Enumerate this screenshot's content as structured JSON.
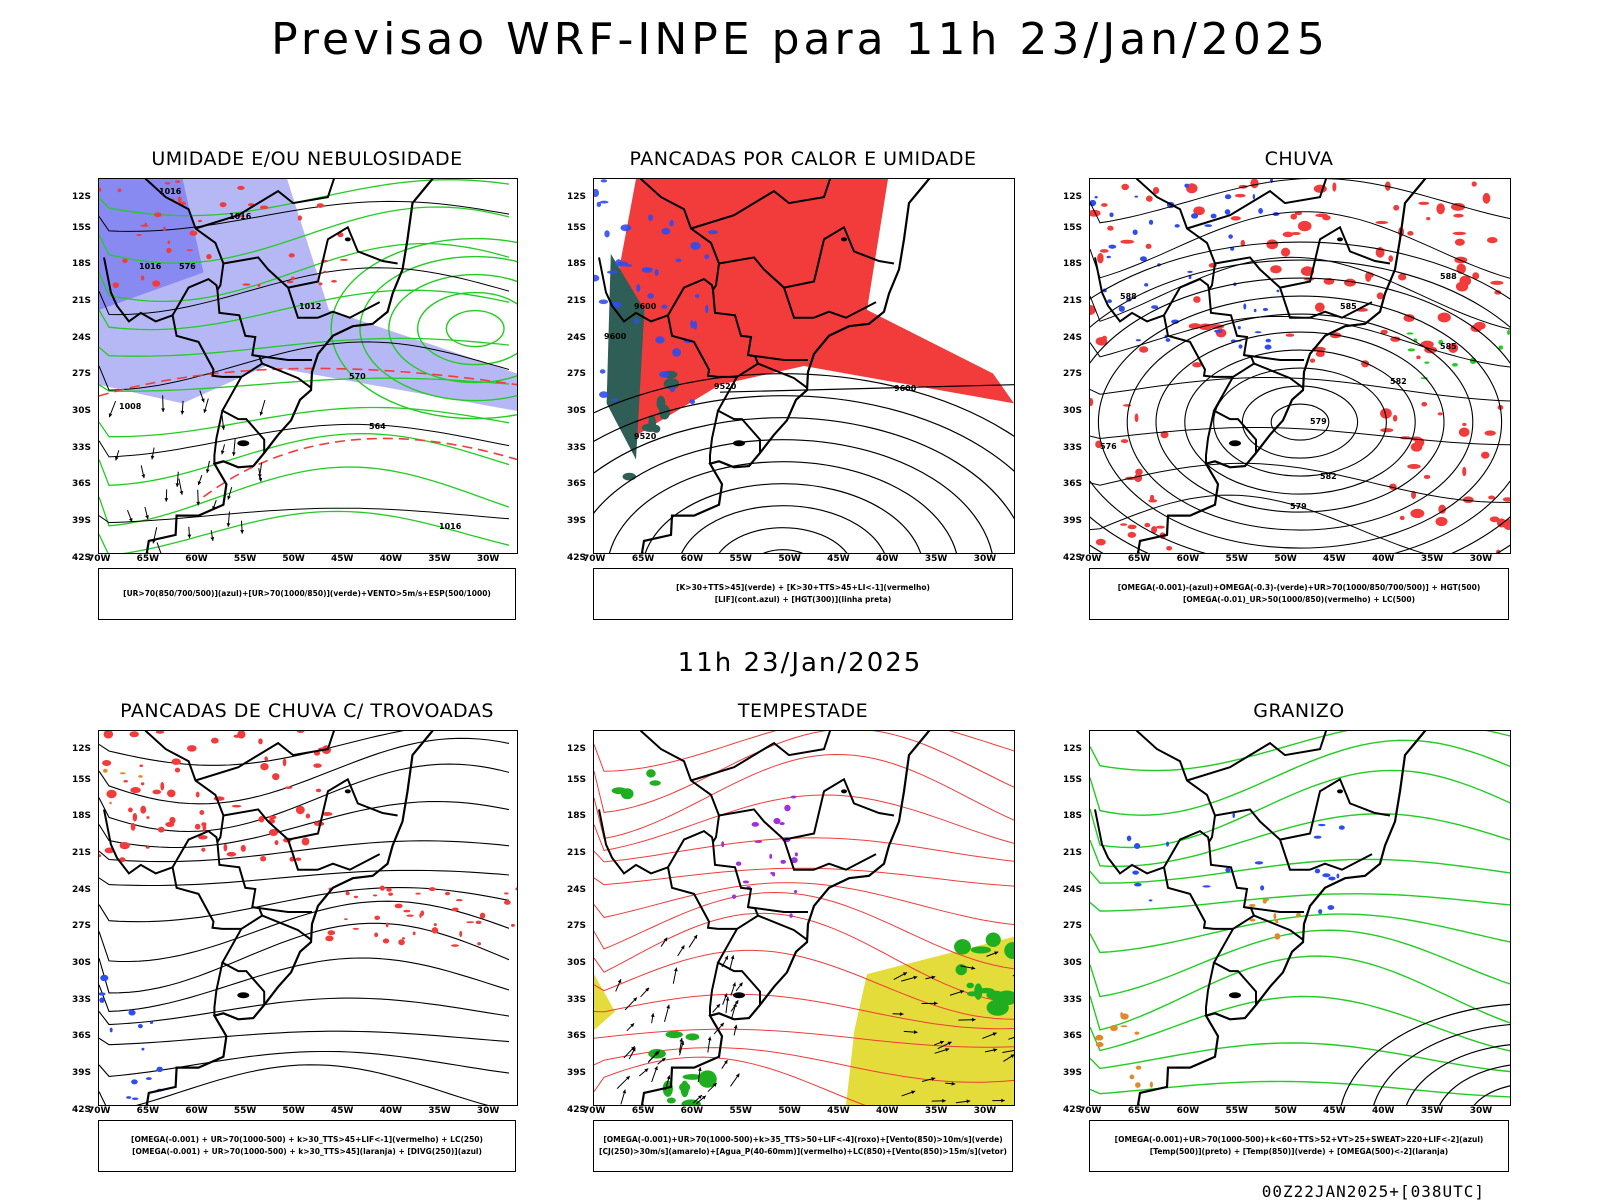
{
  "title": "Previsao WRF-INPE  para 11h 23/Jan/2025",
  "mid_title": "11h 23/Jan/2025",
  "footer": "00Z22JAN2025+[038UTC]",
  "lat_labels": [
    "12S",
    "15S",
    "18S",
    "21S",
    "24S",
    "27S",
    "30S",
    "33S",
    "36S",
    "39S",
    "42S"
  ],
  "lon_labels": [
    "70W",
    "65W",
    "60W",
    "55W",
    "50W",
    "45W",
    "40W",
    "35W",
    "30W"
  ],
  "panels": [
    {
      "title": "UMIDADE E/OU NEBULOSIDADE",
      "legend": [
        "[UR>70(850/700/500)](azul)+[UR>70(1000/850)](verde)+VENTO>5m/s+ESP(500/1000)"
      ]
    },
    {
      "title": "PANCADAS POR CALOR E UMIDADE",
      "legend": [
        "[K>30+TTS>45](verde) + [K>30+TTS>45+LI<-1](vermelho)",
        "[LIF](cont.azul) + [HGT(300)](linha preta)"
      ]
    },
    {
      "title": "CHUVA",
      "legend": [
        "[OMEGA(-0.001)-(azul)+OMEGA(-0.3)-(verde)+UR>70(1000/850/700/500)] + HGT(500)",
        "[OMEGA(-0.01)_UR>50(1000/850)(vermelho) + LC(500)"
      ]
    },
    {
      "title": "PANCADAS DE CHUVA C/ TROVOADAS",
      "legend": [
        "[OMEGA(-0.001) + UR>70(1000-500) + k>30_TTS>45+LIF<-1](vermelho) + LC(250)",
        "[OMEGA(-0.001) + UR>70(1000-500) + k>30_TTS>45](laranja) + [DIVG(250)](azul)"
      ]
    },
    {
      "title": "TEMPESTADE",
      "legend": [
        "[OMEGA(-0.001)+UR>70(1000-500)+k>35_TTS>50+LIF<-4](roxo)+[Vento(850)>10m/s](verde)",
        "[CJ(250)>30m/s](amarelo)+[Agua_P(40-60mm)](vermelho)+LC(850)+[Vento(850)>15m/s](vetor)"
      ]
    },
    {
      "title": "GRANIZO",
      "legend": [
        "[OMEGA(-0.001)+UR>70(1000-500)+k<60+TTS>52+VT>25+SWEAT>220+LIF<-2](azul)",
        "[Temp(500)](preto) + [Temp(850)](verde) + [OMEGA(500)<-2](laranja)"
      ]
    }
  ],
  "contour_labels": {
    "p1": [
      "1016",
      "1016",
      "1016",
      "1012",
      "1008",
      "570",
      "576",
      "564",
      "1016"
    ],
    "p2": [
      "9600",
      "9600",
      "9520",
      "9600",
      "9520"
    ],
    "p3": [
      "588",
      "585",
      "582",
      "579",
      "576",
      "588",
      "585",
      "582",
      "579"
    ]
  },
  "colors": {
    "red": "#f23b3b",
    "blue": "#2f4cf0",
    "green": "#22cc22",
    "lightblue": "#a9acf3",
    "violet": "#7d7ef0",
    "darkgreen": "#2e5e55",
    "yellow": "#e3dc3a",
    "orange": "#e08a2a",
    "purple": "#a030d8"
  }
}
